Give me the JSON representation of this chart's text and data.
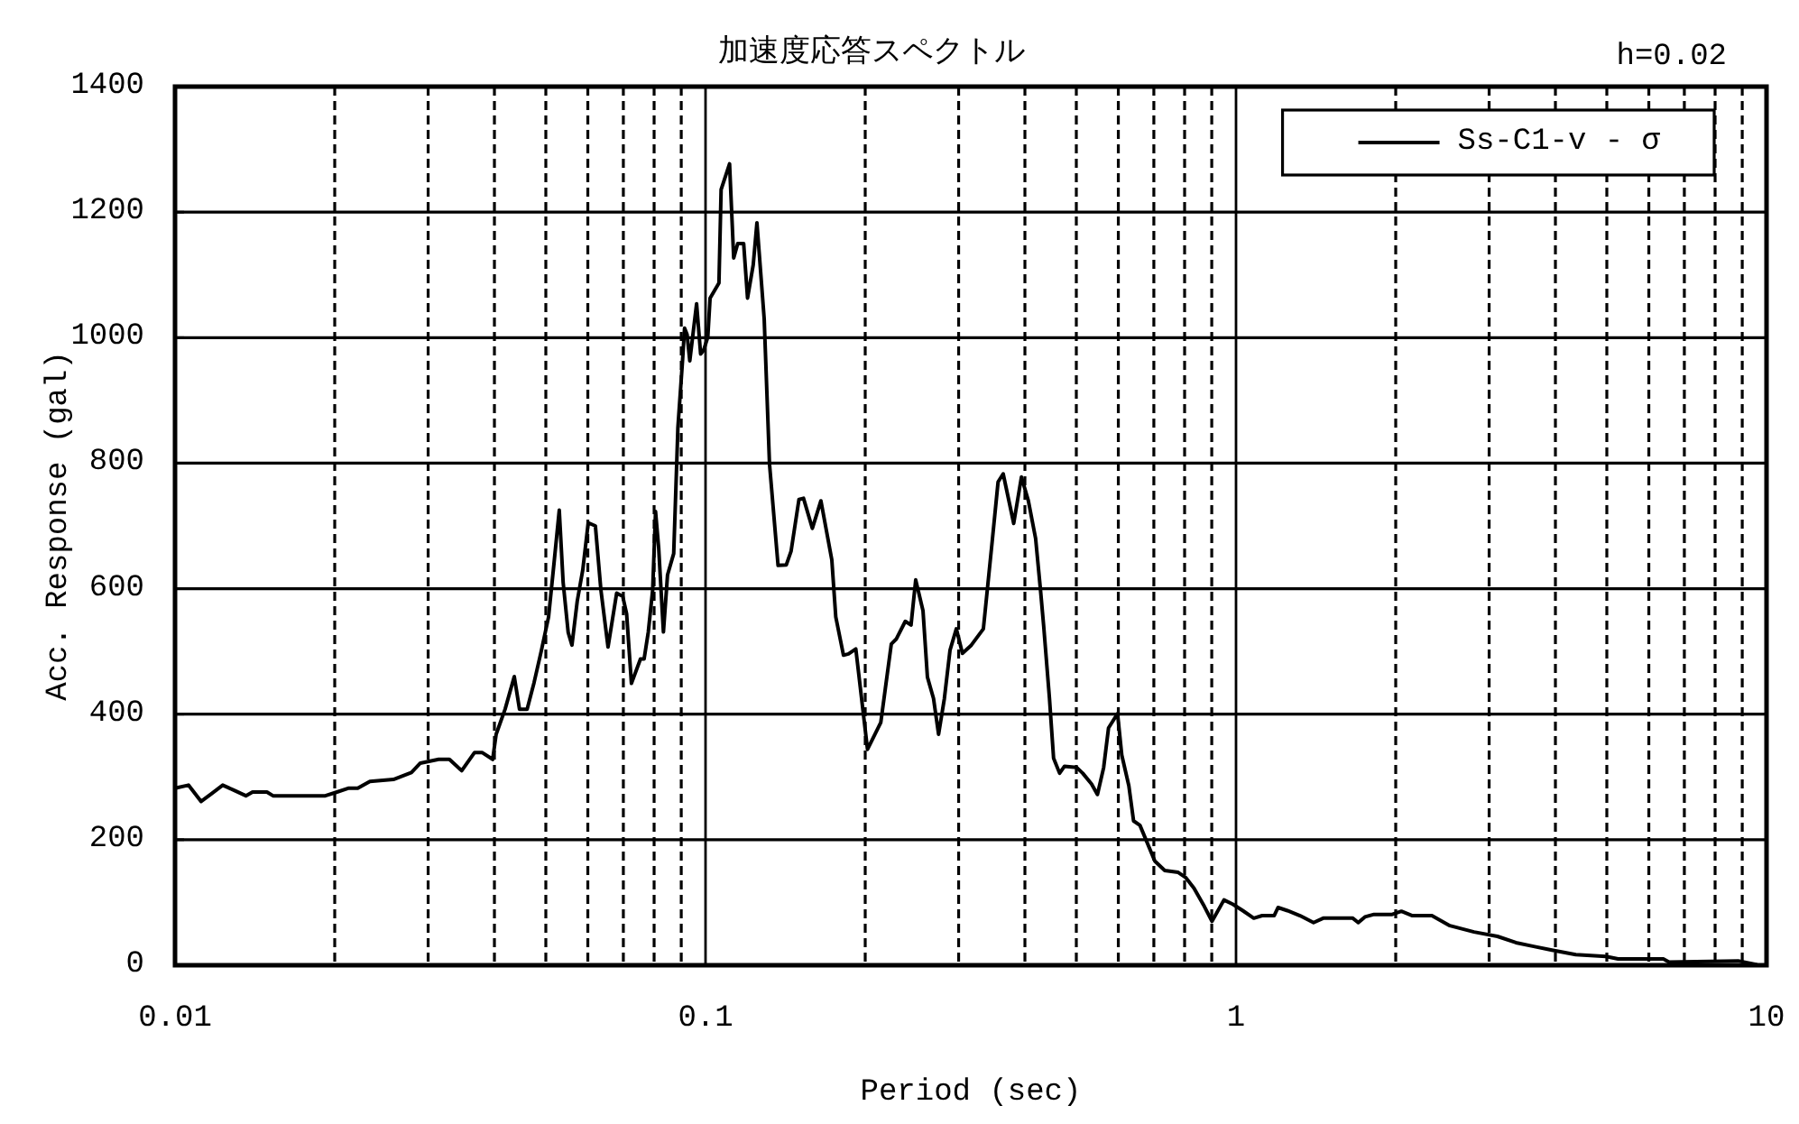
{
  "chart_data": {
    "type": "line",
    "title": "加速度応答スペクトル",
    "annotations": [
      "h=0.02"
    ],
    "xlabel": "Period (sec)",
    "ylabel": "Acc. Response (gal)",
    "log": "x",
    "xlim": [
      0.01,
      10
    ],
    "xticks": [
      0.01,
      {
        "value": 0.02,
        "label": null
      },
      {
        "value": 0.03,
        "label": null
      },
      {
        "value": 0.04,
        "label": null
      },
      {
        "value": 0.05,
        "label": null
      },
      {
        "value": 0.06,
        "label": null
      },
      {
        "value": 0.07,
        "label": null
      },
      {
        "value": 0.08,
        "label": null
      },
      {
        "value": 0.09,
        "label": null
      },
      0.1,
      {
        "value": 0.2,
        "label": null
      },
      {
        "value": 0.3,
        "label": null
      },
      {
        "value": 0.4,
        "label": null
      },
      {
        "value": 0.5,
        "label": null
      },
      {
        "value": 0.6,
        "label": null
      },
      {
        "value": 0.7,
        "label": null
      },
      {
        "value": 0.8,
        "label": null
      },
      {
        "value": 0.9,
        "label": null
      },
      1,
      {
        "value": 2,
        "label": null
      },
      {
        "value": 3,
        "label": null
      },
      {
        "value": 4,
        "label": null
      },
      {
        "value": 5,
        "label": null
      },
      {
        "value": 6,
        "label": null
      },
      {
        "value": 7,
        "label": null
      },
      {
        "value": 8,
        "label": null
      },
      {
        "value": 9,
        "label": null
      },
      10
    ],
    "ylim": [
      0,
      1400
    ],
    "yticks": [
      0,
      200,
      400,
      600,
      800,
      1000,
      1200,
      1400
    ],
    "grid": true,
    "legend": "top right",
    "series": [
      {
        "name": "Ss-C1-v - σ",
        "color": "#000000",
        "x": [
          0.01,
          0.0106,
          0.0112,
          0.0117,
          0.0123,
          0.0129,
          0.0136,
          0.014,
          0.0149,
          0.0153,
          0.0192,
          0.0202,
          0.0212,
          0.0221,
          0.0233,
          0.0258,
          0.0279,
          0.029,
          0.0314,
          0.0329,
          0.0347,
          0.0367,
          0.0379,
          0.0397,
          0.0403,
          0.0419,
          0.0436,
          0.0446,
          0.0461,
          0.0475,
          0.049,
          0.0506,
          0.0518,
          0.053,
          0.0539,
          0.0551,
          0.056,
          0.0573,
          0.0587,
          0.0601,
          0.062,
          0.0635,
          0.0655,
          0.068,
          0.0698,
          0.071,
          0.0725,
          0.0754,
          0.0766,
          0.078,
          0.0795,
          0.0805,
          0.0816,
          0.0833,
          0.0848,
          0.0871,
          0.0887,
          0.0905,
          0.0913,
          0.0923,
          0.0934,
          0.0962,
          0.0979,
          0.0992,
          0.101,
          0.102,
          0.106,
          0.107,
          0.111,
          0.113,
          0.115,
          0.118,
          0.12,
          0.123,
          0.125,
          0.129,
          0.132,
          0.137,
          0.142,
          0.145,
          0.15,
          0.153,
          0.159,
          0.165,
          0.173,
          0.176,
          0.182,
          0.186,
          0.192,
          0.202,
          0.214,
          0.224,
          0.229,
          0.238,
          0.244,
          0.249,
          0.257,
          0.262,
          0.269,
          0.275,
          0.282,
          0.289,
          0.297,
          0.305,
          0.317,
          0.334,
          0.347,
          0.356,
          0.364,
          0.381,
          0.394,
          0.406,
          0.419,
          0.428,
          0.434,
          0.445,
          0.453,
          0.465,
          0.475,
          0.501,
          0.514,
          0.534,
          0.548,
          0.563,
          0.575,
          0.598,
          0.609,
          0.628,
          0.641,
          0.659,
          0.703,
          0.734,
          0.778,
          0.803,
          0.833,
          0.871,
          0.901,
          0.949,
          0.987,
          1.03,
          1.08,
          1.12,
          1.18,
          1.2,
          1.25,
          1.32,
          1.4,
          1.46,
          1.66,
          1.7,
          1.75,
          1.82,
          1.97,
          2.05,
          2.15,
          2.34,
          2.53,
          2.81,
          3.11,
          3.37,
          3.64,
          3.94,
          4.37,
          4.98,
          5.25,
          6.39,
          6.55,
          8.84,
          9.56
        ],
        "values": [
          282,
          287,
          261,
          273,
          287,
          279,
          270,
          276,
          276,
          270,
          270,
          276,
          282,
          282,
          293,
          296,
          307,
          322,
          328,
          328,
          310,
          339,
          339,
          328,
          368,
          408,
          460,
          408,
          408,
          450,
          500,
          555,
          640,
          725,
          610,
          530,
          510,
          580,
          630,
          705,
          700,
          598,
          507,
          593,
          588,
          560,
          449,
          488,
          488,
          531,
          598,
          723,
          665,
          531,
          622,
          656,
          857,
          963,
          1015,
          1005,
          963,
          1054,
          974,
          980,
          1001,
          1063,
          1087,
          1236,
          1277,
          1127,
          1150,
          1150,
          1063,
          1116,
          1183,
          1030,
          799,
          637,
          638,
          660,
          742,
          744,
          696,
          740,
          646,
          555,
          494,
          496,
          504,
          344,
          387,
          512,
          520,
          548,
          542,
          614,
          565,
          459,
          425,
          368,
          425,
          502,
          536,
          497,
          510,
          536,
          675,
          770,
          783,
          704,
          778,
          740,
          680,
          598,
          540,
          425,
          330,
          306,
          317,
          315,
          306,
          289,
          272,
          315,
          378,
          401,
          335,
          286,
          230,
          223,
          166,
          151,
          148,
          140,
          123,
          94,
          70,
          104,
          97,
          87,
          75,
          79,
          79,
          92,
          87,
          79,
          68,
          75,
          75,
          68,
          77,
          81,
          81,
          86,
          79,
          79,
          63,
          53,
          46,
          36,
          30,
          24,
          17,
          14,
          10,
          10,
          5,
          7,
          1
        ]
      }
    ]
  }
}
